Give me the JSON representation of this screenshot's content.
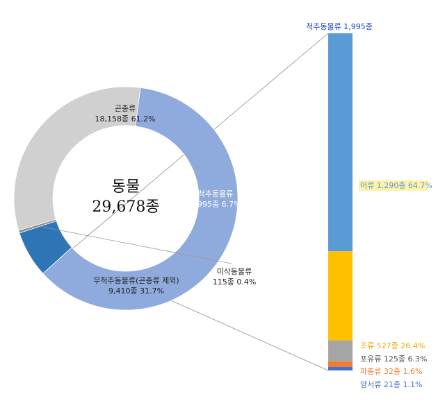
{
  "chart_data": [
    {
      "type": "pie",
      "style": "donut",
      "center_label": {
        "title": "동물",
        "value": "29,678종"
      },
      "slices": [
        {
          "name": "곤충류",
          "label": "18,158종 61.2%",
          "value": 18158,
          "percent": 61.2,
          "color": "#8faadc",
          "label_color": "#222222"
        },
        {
          "name": "척추동물류",
          "label": "1,995종 6.7%",
          "value": 1995,
          "percent": 6.7,
          "color": "#2e75b6",
          "label_color": "#ffffff"
        },
        {
          "name": "미삭동물류",
          "label": "115종 0.4%",
          "value": 115,
          "percent": 0.4,
          "color": "#8c8c8c",
          "label_color": "#222222"
        },
        {
          "name": "무척추동물류(곤충류 제외)",
          "label": "9,410종 31.7%",
          "value": 9410,
          "percent": 31.7,
          "color": "#d0d0d0",
          "label_color": "#222222"
        }
      ]
    },
    {
      "type": "bar",
      "style": "stacked-100",
      "title": "척추동물류 1,995종",
      "title_color": "#1f3fbf",
      "segments": [
        {
          "label": "어류 1,290종 64.7%",
          "value": 1290,
          "percent": 64.7,
          "color": "#5b9bd5",
          "label_color": "#5b9bd5",
          "highlight": "#fff2a8"
        },
        {
          "label": "조류 527종 26.4%",
          "value": 527,
          "percent": 26.4,
          "color": "#ffc000",
          "label_color": "#f0a800"
        },
        {
          "label": "포유류 125종 6.3%",
          "value": 125,
          "percent": 6.3,
          "color": "#a5a5a5",
          "label_color": "#555555"
        },
        {
          "label": "파충류 32종 1.6%",
          "value": 32,
          "percent": 1.6,
          "color": "#ed7d31",
          "label_color": "#ed7d31"
        },
        {
          "label": "양서류 21종 1.1%",
          "value": 21,
          "percent": 1.1,
          "color": "#4472c4",
          "label_color": "#4472c4"
        }
      ]
    }
  ]
}
